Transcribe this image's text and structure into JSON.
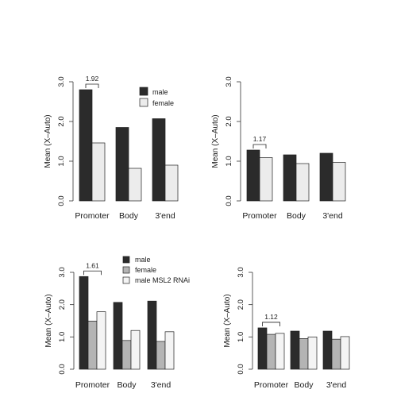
{
  "chart_data": [
    {
      "type": "bar",
      "title": "",
      "categories": [
        "Promoter",
        "Body",
        "3'end"
      ],
      "series": [
        {
          "name": "male",
          "color": "#2b2b2b",
          "values": [
            2.8,
            1.85,
            2.07
          ]
        },
        {
          "name": "female",
          "color": "#ececec",
          "values": [
            1.46,
            0.82,
            0.9
          ]
        }
      ],
      "xlabel": "",
      "ylabel": "Mean (X–Auto)",
      "yticks": [
        "0.0",
        "1.0",
        "2.0",
        "3.0"
      ],
      "ylim": [
        0,
        3.0
      ],
      "annotation": {
        "text": "1.92",
        "category": "Promoter"
      },
      "legend": {
        "placement": "top-right"
      },
      "grid": false
    },
    {
      "type": "bar",
      "title": "",
      "categories": [
        "Promoter",
        "Body",
        "3'end"
      ],
      "series": [
        {
          "color": "#2b2b2b",
          "values": [
            1.28,
            1.16,
            1.2
          ]
        },
        {
          "color": "#ececec",
          "values": [
            1.09,
            0.94,
            0.97
          ]
        }
      ],
      "xlabel": "",
      "ylabel": "Mean (X–Auto)",
      "yticks": [
        "0.0",
        "1.0",
        "2.0",
        "3.0"
      ],
      "ylim": [
        0,
        3.0
      ],
      "annotation": {
        "text": "1.17",
        "category": "Promoter"
      },
      "grid": false
    },
    {
      "type": "bar",
      "title": "",
      "categories": [
        "Promoter",
        "Body",
        "3'end"
      ],
      "series": [
        {
          "name": "male",
          "color": "#2b2b2b",
          "values": [
            2.87,
            2.07,
            2.11
          ]
        },
        {
          "name": "female",
          "color": "#b4b4b4",
          "values": [
            1.49,
            0.89,
            0.86
          ]
        },
        {
          "name": "male MSL2 RNAi",
          "color": "#f4f4f4",
          "values": [
            1.78,
            1.2,
            1.16
          ]
        }
      ],
      "xlabel": "",
      "ylabel": "Mean (X–Auto)",
      "yticks": [
        "0.0",
        "1.0",
        "2.0",
        "3.0"
      ],
      "ylim": [
        0,
        3.0
      ],
      "annotation": {
        "text": "1.61",
        "category": "Promoter"
      },
      "legend": {
        "placement": "top"
      },
      "grid": false
    },
    {
      "type": "bar",
      "title": "",
      "categories": [
        "Promoter",
        "Body",
        "3'end"
      ],
      "series": [
        {
          "color": "#2b2b2b",
          "values": [
            1.28,
            1.18,
            1.18
          ]
        },
        {
          "color": "#b4b4b4",
          "values": [
            1.08,
            0.95,
            0.93
          ]
        },
        {
          "color": "#f4f4f4",
          "values": [
            1.11,
            1.0,
            1.01
          ]
        }
      ],
      "xlabel": "",
      "ylabel": "Mean (X–Auto)",
      "yticks": [
        "0.0",
        "1.0",
        "2.0",
        "3.0"
      ],
      "ylim": [
        0,
        3.0
      ],
      "annotation": {
        "text": "1.12",
        "category": "Promoter"
      },
      "grid": false
    }
  ]
}
